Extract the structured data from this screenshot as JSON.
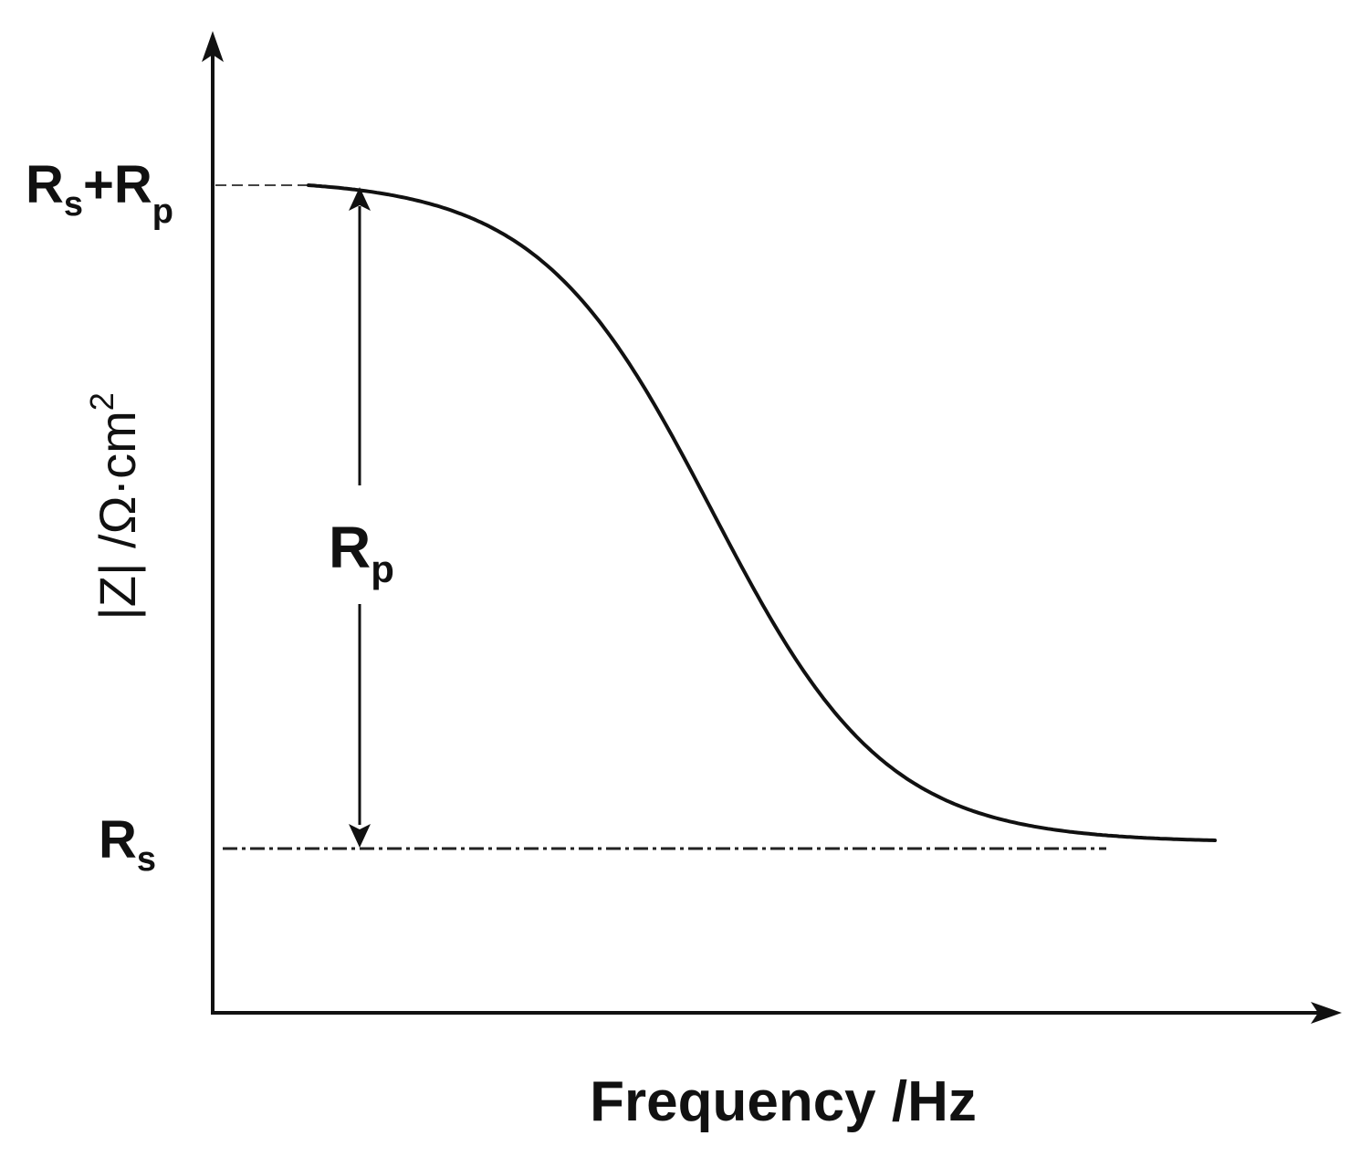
{
  "chart_data": {
    "type": "line",
    "title": "",
    "xlabel": "Frequency /Hz",
    "ylabel": "|Z| /Ω·cm",
    "ylabel_superscript": "2",
    "x_scale": "log",
    "y_scale": "log",
    "grid": false,
    "legend": "none",
    "tick_labels": {
      "upper": {
        "main": "R",
        "sub1": "s",
        "plus": "+R",
        "sub2": "p"
      },
      "lower": {
        "main": "R",
        "sub": "s"
      }
    },
    "annotation": {
      "main": "R",
      "sub": "p"
    },
    "series": [
      {
        "values": [
          {
            "level": "upper",
            "fraction": 1.0
          },
          {
            "level": "upper",
            "fraction": 1.0
          },
          {
            "level": "transition",
            "fraction": 0.5
          },
          {
            "level": "lower",
            "fraction": 0.0
          },
          {
            "level": "lower",
            "fraction": 0.0
          }
        ]
      }
    ],
    "colors": {
      "ink": "#111111"
    }
  }
}
